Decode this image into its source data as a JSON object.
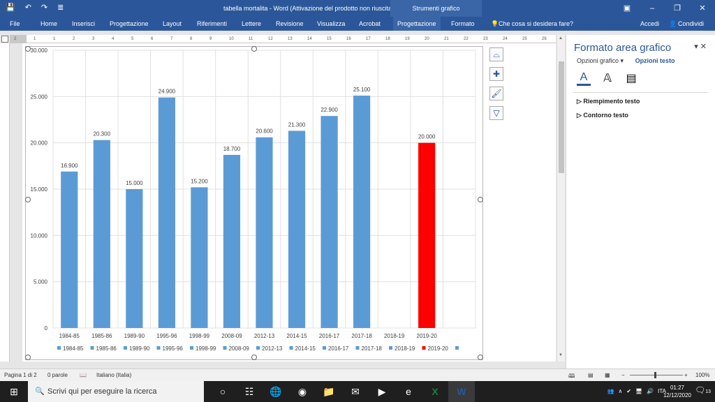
{
  "titlebar": {
    "title": "tabella mortalita  -  Word (Attivazione del prodotto non riuscita)",
    "context_group": "Strumenti grafico",
    "save_icon": "save-icon",
    "undo_icon": "undo-icon",
    "redo_icon": "redo-icon",
    "customize_icon": "customize-qat-icon"
  },
  "ribbon": {
    "tabs": [
      "File",
      "Home",
      "Inserisci",
      "Progettazione",
      "Layout",
      "Riferimenti",
      "Lettere",
      "Revisione",
      "Visualizza",
      "Acrobat",
      "Progettazione",
      "Formato"
    ],
    "tell_me": "Che cosa si desidera fare?",
    "signin": "Accedi",
    "share": "Condividi"
  },
  "ruler": {
    "marks": [
      "2",
      "1",
      "1",
      "2",
      "3",
      "4",
      "5",
      "6",
      "7",
      "8",
      "9",
      "10",
      "11",
      "12",
      "13",
      "14",
      "15",
      "16",
      "17",
      "18",
      "19",
      "20",
      "21",
      "22",
      "23",
      "24",
      "25",
      "26"
    ]
  },
  "chart_data": {
    "type": "bar",
    "categories": [
      "1984-85",
      "1985-86",
      "1989-90",
      "1995-96",
      "1998-99",
      "2008-09",
      "2012-13",
      "2014-15",
      "2016-17",
      "2017-18",
      "2018-19",
      "2019-20"
    ],
    "values": [
      16900,
      20300,
      15000,
      24900,
      15200,
      18700,
      20600,
      21300,
      22900,
      25100,
      null,
      20000
    ],
    "data_labels": [
      "16.900",
      "20.300",
      "15.000",
      "24.900",
      "15.200",
      "18.700",
      "20.600",
      "21.300",
      "22.900",
      "25.100",
      "",
      "20.000"
    ],
    "y_ticks": [
      "0",
      "5.000",
      "10.000",
      "15.000",
      "20.000",
      "25.000",
      "30.000"
    ],
    "ylim": [
      0,
      30000
    ],
    "grid": true,
    "legend_position": "bottom",
    "legend": [
      "1984-85",
      "1985-86",
      "1989-90",
      "1995-96",
      "1998-99",
      "2008-09",
      "2012-13",
      "2014-15",
      "2016-17",
      "2017-18",
      "2018-19",
      "2019-20",
      ""
    ],
    "colors": {
      "bar": "#5b9bd5",
      "highlight": "#ff0000",
      "grid": "#e0e0e0",
      "text": "#404040"
    },
    "highlight_category": "2019-20"
  },
  "chart_tools": [
    "layout-options-icon",
    "chart-elements-icon",
    "chart-styles-icon",
    "chart-filters-icon"
  ],
  "pane": {
    "title": "Formato area grafico",
    "options_label": "Opzioni grafico",
    "text_options": "Opzioni testo",
    "sections": [
      "Riempimento testo",
      "Contorno testo"
    ]
  },
  "status": {
    "page": "Pagina 1 di 2",
    "words": "0 parole",
    "language": "Italiano (Italia)",
    "zoom": "100%"
  },
  "taskbar": {
    "search": "Scrivi qui per eseguire la ricerca",
    "lang": "ITA",
    "time": "01:27",
    "date": "12/12/2020",
    "notifications": "13"
  }
}
